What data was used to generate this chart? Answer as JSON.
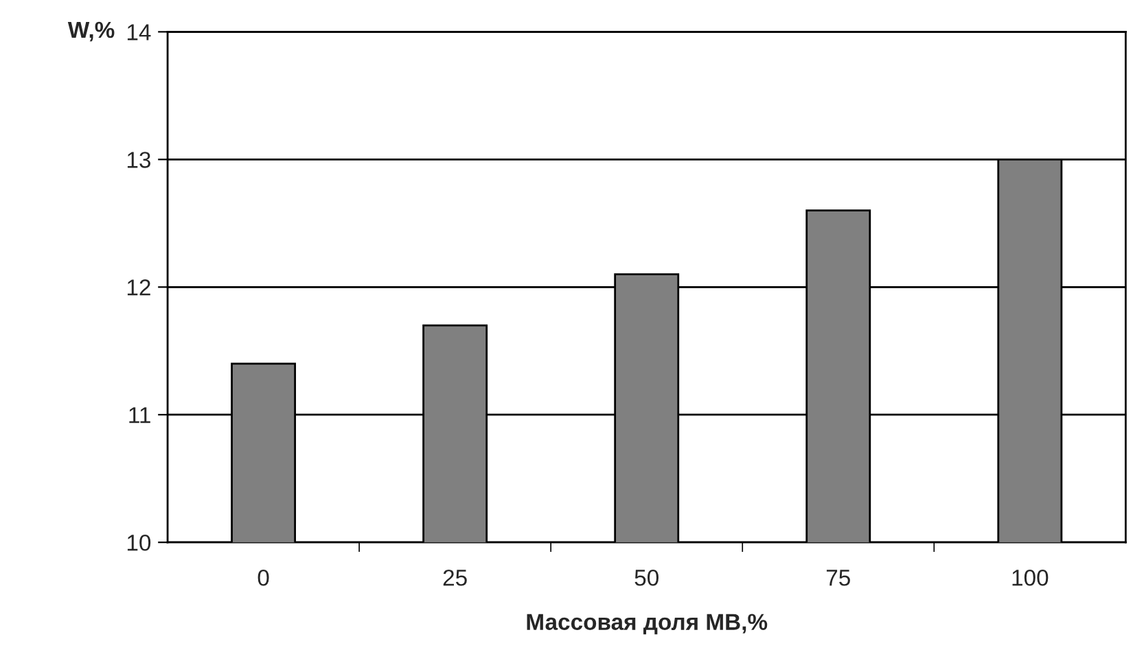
{
  "chart_data": {
    "type": "bar",
    "xlabel": "Массовая доля МВ,%",
    "ylabel": "W,%",
    "categories": [
      "0",
      "25",
      "50",
      "75",
      "100"
    ],
    "values": [
      11.4,
      11.7,
      12.1,
      12.6,
      13.0
    ],
    "color": "#808080",
    "ylim": [
      10,
      14
    ],
    "yticks": [
      10,
      11,
      12,
      13,
      14
    ],
    "grid": "y",
    "legend": false
  }
}
